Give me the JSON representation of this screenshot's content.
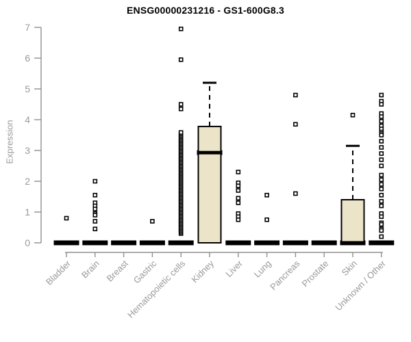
{
  "chart_data": {
    "type": "boxplot",
    "title": "ENSG00000231216 - GS1-600G8.3",
    "ylabel": "Expression",
    "ylim": [
      0,
      7
    ],
    "yticks": [
      0,
      1,
      2,
      3,
      4,
      5,
      6,
      7
    ],
    "grid": false,
    "legend": "none",
    "categories": [
      "Bladder",
      "Brain",
      "Breast",
      "Gastric",
      "Hematopoietic cells",
      "Kidney",
      "Liver",
      "Lung",
      "Pancreas",
      "Prostate",
      "Skin",
      "Unknown / Other"
    ],
    "series": [
      {
        "category": "Bladder",
        "q1": 0,
        "median": 0,
        "q3": 0,
        "whisker_low": 0,
        "whisker_high": 0,
        "outliers": [
          0.8
        ]
      },
      {
        "category": "Brain",
        "q1": 0,
        "median": 0,
        "q3": 0,
        "whisker_low": 0,
        "whisker_high": 0,
        "outliers": [
          2.0,
          1.55,
          1.3,
          1.2,
          1.1,
          0.95,
          0.9,
          0.7,
          0.45
        ]
      },
      {
        "category": "Breast",
        "q1": 0,
        "median": 0,
        "q3": 0,
        "whisker_low": 0,
        "whisker_high": 0,
        "outliers": []
      },
      {
        "category": "Gastric",
        "q1": 0,
        "median": 0,
        "q3": 0,
        "whisker_low": 0,
        "whisker_high": 0,
        "outliers": [
          0.7
        ]
      },
      {
        "category": "Hematopoietic cells",
        "q1": 0,
        "median": 0,
        "q3": 0,
        "whisker_low": 0,
        "whisker_high": 0,
        "outliers": [
          6.95,
          5.95,
          4.5,
          4.35
        ],
        "outlier_band": {
          "from": 0.3,
          "to": 3.6,
          "step": 0.045
        }
      },
      {
        "category": "Kidney",
        "q1": 0,
        "median": 2.93,
        "q3": 3.78,
        "whisker_low": 0,
        "whisker_high": 5.2,
        "outliers": []
      },
      {
        "category": "Liver",
        "q1": 0,
        "median": 0,
        "q3": 0,
        "whisker_low": 0,
        "whisker_high": 0,
        "outliers": [
          2.3,
          1.95,
          1.85,
          1.7,
          1.45,
          1.3,
          0.95,
          0.85,
          0.75
        ]
      },
      {
        "category": "Lung",
        "q1": 0,
        "median": 0,
        "q3": 0,
        "whisker_low": 0,
        "whisker_high": 0,
        "outliers": [
          1.55,
          0.75
        ]
      },
      {
        "category": "Pancreas",
        "q1": 0,
        "median": 0,
        "q3": 0,
        "whisker_low": 0,
        "whisker_high": 0,
        "outliers": [
          4.8,
          3.85,
          1.6
        ]
      },
      {
        "category": "Prostate",
        "q1": 0,
        "median": 0,
        "q3": 0,
        "whisker_low": 0,
        "whisker_high": 0,
        "outliers": []
      },
      {
        "category": "Skin",
        "q1": 0,
        "median": 0,
        "q3": 1.4,
        "whisker_low": 0,
        "whisker_high": 3.15,
        "outliers": [
          4.15
        ]
      },
      {
        "category": "Unknown / Other",
        "q1": 0,
        "median": 0,
        "q3": 0,
        "whisker_low": 0,
        "whisker_high": 0,
        "outliers": [
          4.8,
          4.6,
          4.5,
          4.2,
          4.1,
          3.95,
          3.8,
          3.7,
          3.6,
          3.55,
          3.5,
          3.3,
          3.1,
          2.9,
          2.7,
          2.5,
          2.2,
          2.05,
          1.9,
          1.75,
          1.55,
          1.35,
          1.2,
          0.95,
          0.85,
          0.65,
          0.6,
          0.45,
          0.4,
          0.2
        ]
      }
    ],
    "colors": {
      "box_fill": "#ece4c8",
      "box_stroke": "#000000",
      "median": "#000000",
      "zero_bar": "#000000",
      "outlier_stroke": "#000000",
      "outlier_fill": "#ffffff",
      "axis_line": "#8f8f8f",
      "tick_label": "#999999",
      "title": "#000000",
      "background": "#ffffff"
    }
  }
}
